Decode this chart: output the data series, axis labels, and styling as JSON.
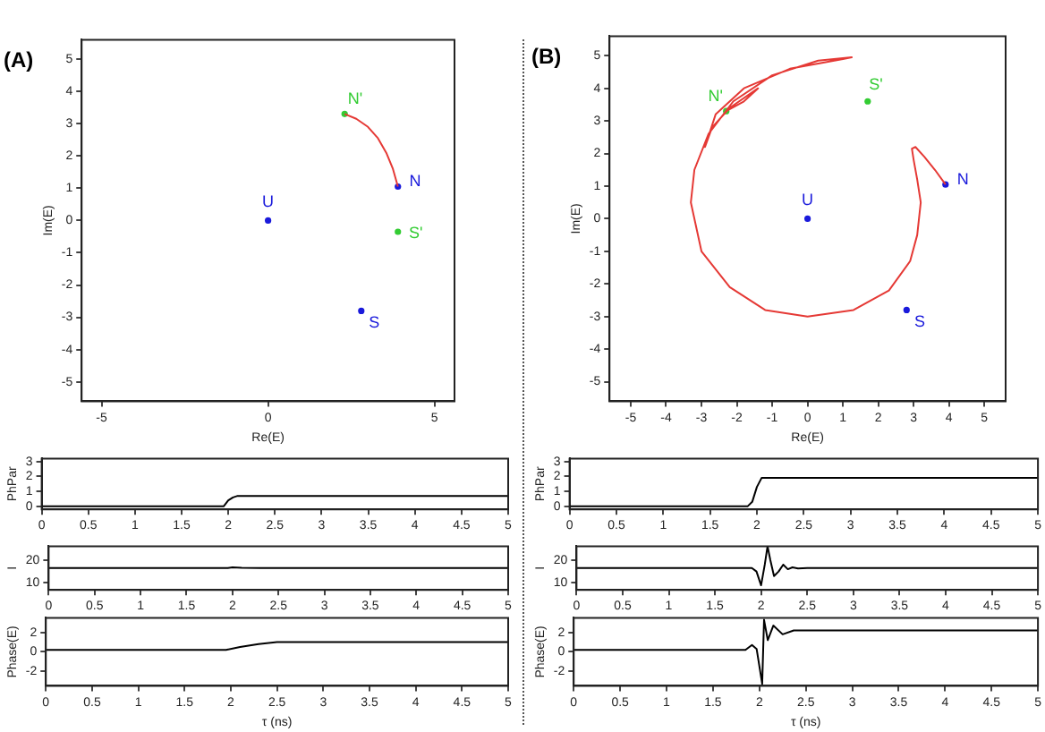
{
  "chart_data": [
    {
      "type": "line",
      "title": "(A)",
      "xlabel": "Re(E)",
      "ylabel": "Im(E)",
      "xlim": [
        -5.6,
        5.6
      ],
      "ylim": [
        -5.6,
        5.6
      ],
      "xticks": [
        -5,
        0,
        5
      ],
      "yticks": [
        -5,
        -4,
        -3,
        -2,
        -1,
        0,
        1,
        2,
        3,
        4,
        5
      ],
      "series": [
        {
          "color": "#e53935",
          "x": [
            3.9,
            3.75,
            3.55,
            3.3,
            3.0,
            2.65,
            2.3
          ],
          "values": [
            1.05,
            1.6,
            2.1,
            2.55,
            2.9,
            3.15,
            3.3
          ]
        },
        {
          "type": "scatter",
          "name": "U",
          "color": "#1a1adb",
          "marker": "circle",
          "x": [
            0
          ],
          "values": [
            0
          ]
        },
        {
          "type": "scatter",
          "name": "N",
          "color": "#1a1adb",
          "marker": "circle",
          "x": [
            3.9
          ],
          "values": [
            1.05
          ]
        },
        {
          "type": "scatter",
          "name": "S",
          "color": "#1a1adb",
          "marker": "circle",
          "x": [
            2.8
          ],
          "values": [
            -2.8
          ]
        },
        {
          "type": "scatter",
          "name": "N'",
          "color": "#33cc33",
          "marker": "circle",
          "x": [
            2.3
          ],
          "values": [
            3.3
          ]
        },
        {
          "type": "scatter",
          "name": "S'",
          "color": "#33cc33",
          "marker": "circle",
          "x": [
            3.9
          ],
          "values": [
            -0.35
          ]
        }
      ]
    },
    {
      "type": "line",
      "title": "(B)",
      "xlabel": "Re(E)",
      "ylabel": "Im(E)",
      "xlim": [
        -5.6,
        5.6
      ],
      "ylim": [
        -5.6,
        5.6
      ],
      "xticks": [
        -5,
        -4,
        -3,
        -2,
        -1,
        0,
        1,
        2,
        3,
        4,
        5
      ],
      "yticks": [
        -5,
        -4,
        -3,
        -2,
        -1,
        0,
        1,
        2,
        3,
        4,
        5
      ],
      "series": [
        {
          "color": "#e53935",
          "x": [
            3.9,
            3.6,
            3.3,
            3.05,
            2.95,
            3.0,
            3.1,
            3.2,
            3.1,
            2.9,
            2.3,
            1.3,
            0,
            -1.2,
            -2.2,
            -3.0,
            -3.3,
            -3.2,
            -2.8,
            -2.1,
            -1.0,
            0.3,
            1.25,
            1.0,
            -0.5,
            -1.8,
            -2.6,
            -2.9,
            -2.7,
            -2.2,
            -1.4,
            -1.8,
            -2.3
          ],
          "values": [
            1.05,
            1.5,
            1.9,
            2.2,
            2.15,
            1.8,
            1.2,
            0.5,
            -0.5,
            -1.3,
            -2.2,
            -2.8,
            -3.0,
            -2.8,
            -2.1,
            -1.0,
            0.5,
            1.5,
            2.6,
            3.6,
            4.4,
            4.85,
            4.95,
            4.9,
            4.6,
            4.0,
            3.2,
            2.2,
            2.8,
            3.4,
            4.0,
            3.6,
            3.3
          ]
        },
        {
          "type": "scatter",
          "name": "U",
          "color": "#1a1adb",
          "marker": "circle",
          "x": [
            0
          ],
          "values": [
            0
          ]
        },
        {
          "type": "scatter",
          "name": "N",
          "color": "#1a1adb",
          "marker": "circle",
          "x": [
            3.9
          ],
          "values": [
            1.05
          ]
        },
        {
          "type": "scatter",
          "name": "S",
          "color": "#1a1adb",
          "marker": "circle",
          "x": [
            2.8
          ],
          "values": [
            -2.8
          ]
        },
        {
          "type": "scatter",
          "name": "N'",
          "color": "#33cc33",
          "marker": "circle",
          "x": [
            -2.3
          ],
          "values": [
            3.3
          ]
        },
        {
          "type": "scatter",
          "name": "S'",
          "color": "#33cc33",
          "marker": "circle",
          "x": [
            1.7
          ],
          "values": [
            3.6
          ]
        }
      ]
    },
    {
      "type": "line",
      "ylabel": "PhPar",
      "xlim": [
        0,
        5
      ],
      "ylim": [
        -0.2,
        3.2
      ],
      "xticks": [
        0,
        0.5,
        1,
        1.5,
        2,
        2.5,
        3,
        3.5,
        4,
        4.5,
        5
      ],
      "yticks": [
        0,
        1,
        2,
        3
      ],
      "series": [
        {
          "color": "#000000",
          "x": [
            0,
            1.95,
            2.0,
            2.05,
            2.1,
            5
          ],
          "values": [
            0,
            0,
            0.4,
            0.6,
            0.7,
            0.7
          ]
        }
      ]
    },
    {
      "type": "line",
      "ylabel": "I",
      "xlim": [
        0,
        5
      ],
      "ylim": [
        7,
        26
      ],
      "xticks": [
        0,
        0.5,
        1,
        1.5,
        2,
        2.5,
        3,
        3.5,
        4,
        4.5,
        5
      ],
      "yticks": [
        10,
        20
      ],
      "series": [
        {
          "color": "#000000",
          "x": [
            0,
            1.95,
            2.0,
            2.1,
            2.3,
            5
          ],
          "values": [
            16.5,
            16.5,
            16.8,
            16.6,
            16.5,
            16.5
          ]
        }
      ]
    },
    {
      "type": "line",
      "xlabel": "τ (ns)",
      "ylabel": "Phase(E)",
      "xlim": [
        0,
        5
      ],
      "ylim": [
        -3.5,
        3.5
      ],
      "xticks": [
        0,
        0.5,
        1,
        1.5,
        2,
        2.5,
        3,
        3.5,
        4,
        4.5,
        5
      ],
      "yticks": [
        -2,
        0,
        2
      ],
      "series": [
        {
          "color": "#000000",
          "x": [
            0,
            1.95,
            2.1,
            2.3,
            2.5,
            5
          ],
          "values": [
            0.2,
            0.2,
            0.5,
            0.8,
            1.0,
            1.0
          ]
        }
      ]
    },
    {
      "type": "line",
      "ylabel": "PhPar",
      "xlim": [
        0,
        5
      ],
      "ylim": [
        -0.2,
        3.2
      ],
      "xticks": [
        0,
        0.5,
        1,
        1.5,
        2,
        2.5,
        3,
        3.5,
        4,
        4.5,
        5
      ],
      "yticks": [
        0,
        1,
        2,
        3
      ],
      "series": [
        {
          "color": "#000000",
          "x": [
            0,
            1.9,
            1.95,
            2.0,
            2.05,
            2.1,
            5
          ],
          "values": [
            0,
            0,
            0.3,
            1.3,
            1.9,
            1.9,
            1.9
          ]
        }
      ]
    },
    {
      "type": "line",
      "ylabel": "I",
      "xlim": [
        0,
        5
      ],
      "ylim": [
        7,
        26
      ],
      "xticks": [
        0,
        0.5,
        1,
        1.5,
        2,
        2.5,
        3,
        3.5,
        4,
        4.5,
        5
      ],
      "yticks": [
        10,
        20
      ],
      "series": [
        {
          "color": "#000000",
          "x": [
            0,
            1.9,
            1.95,
            2.0,
            2.04,
            2.07,
            2.1,
            2.14,
            2.19,
            2.24,
            2.29,
            2.34,
            2.4,
            2.5,
            5
          ],
          "values": [
            16.5,
            16.5,
            15,
            9,
            18,
            26,
            20,
            13,
            15,
            18,
            16,
            16.8,
            16.3,
            16.5,
            16.5
          ]
        }
      ]
    },
    {
      "type": "line",
      "xlabel": "τ (ns)",
      "ylabel": "Phase(E)",
      "xlim": [
        0,
        5
      ],
      "ylim": [
        -3.5,
        3.5
      ],
      "xticks": [
        0,
        0.5,
        1,
        1.5,
        2,
        2.5,
        3,
        3.5,
        4,
        4.5,
        5
      ],
      "yticks": [
        -2,
        0,
        2
      ],
      "series": [
        {
          "color": "#000000",
          "x": [
            0,
            1.85,
            1.92,
            1.97,
            2.03,
            2.05,
            2.09,
            2.15,
            2.25,
            2.37,
            5
          ],
          "values": [
            0.2,
            0.2,
            0.7,
            0.3,
            -3.3,
            3.3,
            1.2,
            2.7,
            1.8,
            2.2,
            2.2
          ]
        }
      ]
    }
  ]
}
